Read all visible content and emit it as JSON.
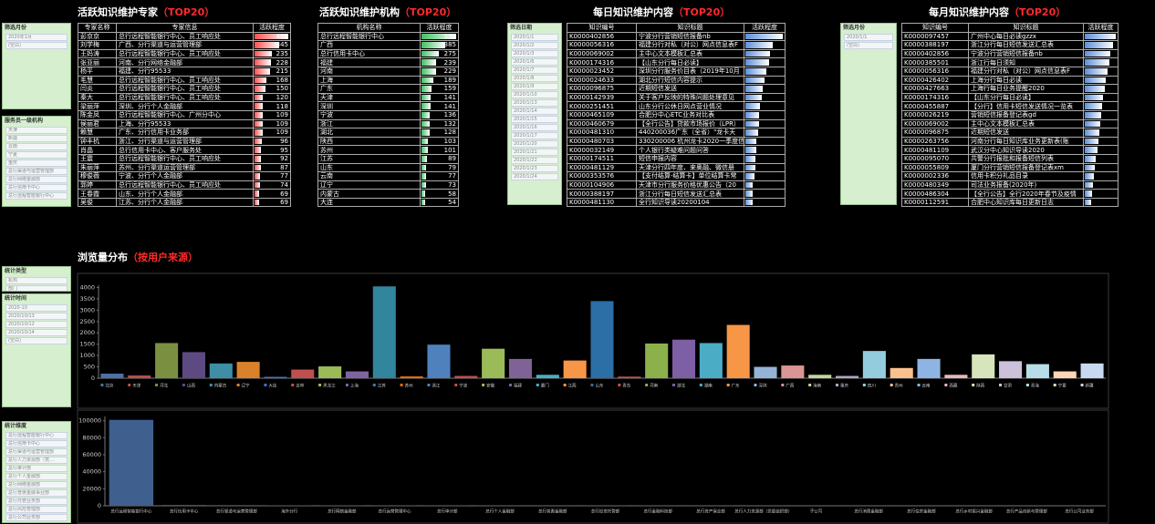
{
  "slicers": [
    {
      "title": "筛选月份",
      "items": [
        "2020年1月",
        "(空白)"
      ]
    },
    {
      "title": "服务员一级机构",
      "items": [
        "天津",
        "新疆",
        "云南",
        "宁夏",
        "重庆",
        "总行渠道与运营管理部",
        "总行网络金融部",
        "总行信用卡中心",
        "总行远程智能银行中心"
      ]
    },
    {
      "title": "筛选日期",
      "items": [
        "2020/1/1",
        "2020/1/2",
        "2020/1/3",
        "2020/1/6",
        "2020/1/7",
        "2020/1/8",
        "2020/1/9",
        "2020/1/10",
        "2020/1/13",
        "2020/1/14",
        "2020/1/15",
        "2020/1/16",
        "2020/1/17",
        "2020/1/20",
        "2020/1/21",
        "2020/1/22",
        "2020/1/23",
        "2020/1/24"
      ]
    },
    {
      "title": "筛选月份",
      "items": [
        "2020/1/1",
        "(空白)"
      ]
    },
    {
      "title": "统计类型",
      "items": [
        "机构",
        "部门"
      ]
    },
    {
      "title": "统计时间",
      "items": [
        "2020-10",
        "2020/10/13",
        "2020/10/12",
        "2020/10/14",
        "(空白)"
      ]
    },
    {
      "title": "统计维度",
      "items": [
        "总行远程智能银行中心",
        "总行信用卡中心",
        "总行渠道与运营管理部",
        "总行人力资源部（党…",
        "总行审计部",
        "总行个人金融部",
        "总行网络金融部",
        "总行普惠金融事业部",
        "总行托管业务部",
        "总行风险管理部",
        "总行公司业务部",
        "总行住房金融与个人…",
        "总行运营管理部"
      ]
    }
  ],
  "tables": [
    {
      "title": "活跃知识维护专家",
      "title_note": "（TOP20）",
      "bar_color": "#ff5050",
      "columns": [
        "专家名称",
        "专家信息",
        "活跃程度"
      ],
      "rows": [
        [
          "彭京京",
          "总行远程智能银行中心、员工响应处",
          469
        ],
        [
          "刘学梅",
          "广西、分行渠道与运营管理部",
          345
        ],
        [
          "王妈涛",
          "总行远程智能银行中心、员工响应处",
          235
        ],
        [
          "张亚丽",
          "河南、分行网络金融部",
          228
        ],
        [
          "杨平",
          "福建、分行95533",
          215
        ],
        [
          "毛慧",
          "总行远程智能银行中心、员工响应处",
          168
        ],
        [
          "闫炎",
          "总行远程智能银行中心、员工响应处",
          150
        ],
        [
          "秦大",
          "总行远程智能银行中心、员工响应处",
          120
        ],
        [
          "梁丽萍",
          "深圳、分行个人金融部",
          118
        ],
        [
          "陈金凤",
          "总行远程智能银行中心、广州分中心",
          109
        ],
        [
          "侯丽君",
          "上海、分行95533",
          109
        ],
        [
          "赖慧",
          "广东、分行信用卡业务部",
          109
        ],
        [
          "钟丰杭",
          "浙江、分行渠道与运营管理部",
          96
        ],
        [
          "肖晶",
          "总行信用卡中心、客户服务处",
          95
        ],
        [
          "王震",
          "总行远程智能银行中心、员工响应处",
          92
        ],
        [
          "朱丽萍",
          "苏州、分行渠道运营管理部",
          87
        ],
        [
          "穆俊薇",
          "宁波、分行个人金融部",
          77
        ],
        [
          "郭婷",
          "总行远程智能银行中心、员工响应处",
          74
        ],
        [
          "王春霞",
          "山东、分行个人金融部",
          69
        ],
        [
          "吴俊",
          "江苏、分行个人金融部",
          69
        ]
      ]
    },
    {
      "title": "活跃知识维护机构",
      "title_note": "（TOP20）",
      "bar_color": "#3fbf5f",
      "columns": [
        "机构名称",
        "活跃程度"
      ],
      "rows": [
        [
          "总行远程智能银行中心",
          559
        ],
        [
          "广西",
          385
        ],
        [
          "总行信用卡中心",
          275
        ],
        [
          "福建",
          239
        ],
        [
          "河南",
          229
        ],
        [
          "上海",
          189
        ],
        [
          "广东",
          159
        ],
        [
          "天津",
          141
        ],
        [
          "深圳",
          141
        ],
        [
          "宁波",
          136
        ],
        [
          "浙江",
          132
        ],
        [
          "湖北",
          128
        ],
        [
          "陕西",
          103
        ],
        [
          "苏州",
          101
        ],
        [
          "江苏",
          89
        ],
        [
          "山东",
          79
        ],
        [
          "云南",
          77
        ],
        [
          "辽宁",
          73
        ],
        [
          "内蒙古",
          58
        ],
        [
          "大连",
          54
        ]
      ]
    },
    {
      "title": "每日知识维护内容",
      "title_note": "（TOP20）",
      "bar_color": "#5b8fd9",
      "columns": [
        "知识编号",
        "知识标题",
        "活跃程度"
      ],
      "rows": [
        [
          "K0000402856",
          "宁波分行营销短信报备nb"
        ],
        [
          "K0000056316",
          "福建分行对私（对公）网点信息表F"
        ],
        [
          "K0000069002",
          "主中心文本模板汇总表"
        ],
        [
          "K0000174316",
          "【山东分行每日必读】"
        ],
        [
          "K0000023452",
          "深圳分行服务价目表（2019年10月"
        ],
        [
          "K0000024633",
          "湖北分行短信内容提示"
        ],
        [
          "K0000096875",
          "近期短信发送"
        ],
        [
          "K0000142939",
          "关于客户反映的特殊问题处理意见"
        ],
        [
          "K0000251451",
          "山东分行公休日网点营业情况"
        ],
        [
          "K0000465109",
          "合肥分中心ETC业务对比表"
        ],
        [
          "K0000460679",
          "【全行公告】贷款市场报价（LPR）"
        ],
        [
          "K0000481310",
          "440200036广东（全省）\"龙卡天"
        ],
        [
          "K0000480703",
          "330200006 杭州龙卡2020一季度信"
        ],
        [
          "K0000032149",
          "个人银行类疑难问题问答"
        ],
        [
          "K0000174511",
          "短信申报内容"
        ],
        [
          "K0000481129",
          "天津分行四年度、来奥融、微信册"
        ],
        [
          "K0000353576",
          "【支付结算-结算卡】单位结算卡常"
        ],
        [
          "K0000104906",
          "天津市分行服务价格优惠公告（20"
        ],
        [
          "K0000388197",
          "浙江分行每日短信发送汇总表"
        ],
        [
          "K0000481130",
          "全行知识导读20200104"
        ]
      ],
      "bar_values": [
        30,
        22,
        20,
        19,
        17,
        15,
        14,
        13,
        12,
        11,
        11,
        10,
        9,
        9,
        8,
        8,
        7,
        6,
        6,
        6
      ]
    },
    {
      "title": "每月知识维护内容",
      "title_note": "（TOP20）",
      "bar_color": "#5b8fd9",
      "columns": [
        "知识编号",
        "知识标题",
        "活跃程度"
      ],
      "rows": [
        [
          "K0000097457",
          "广州中心每日必读gzzx"
        ],
        [
          "K0000388197",
          "浙江分行每日短信发送汇总表"
        ],
        [
          "K0000402856",
          "宁波分行营销短信报备nb"
        ],
        [
          "K0000385501",
          "浙江行每日须知"
        ],
        [
          "K0000056316",
          "福建分行对私（对公）网点信息表F"
        ],
        [
          "K0000426402",
          "上海分行每日必读"
        ],
        [
          "K0000427663",
          "上海行每日业务提醒2020"
        ],
        [
          "K0000174316",
          "【山东分行每日必读】"
        ],
        [
          "K0000455887",
          "【分行】信用卡短信发送情况一览表"
        ],
        [
          "K0000026219",
          "营销短信报备登记表gd"
        ],
        [
          "K0000069002",
          "主中心文本模板汇总表"
        ],
        [
          "K0000096875",
          "近期短信发送"
        ],
        [
          "K0000263756",
          "河南分行每日知识库业务更新表(账"
        ],
        [
          "K0000481109",
          "武汉分中心知识导读2020"
        ],
        [
          "K0000095070",
          "共警分行报批和报备短信列表"
        ],
        [
          "K0000055809",
          "厦门分行营销短信报备登记表xm"
        ],
        [
          "K0000002336",
          "信用卡积分礼品目录"
        ],
        [
          "K0000480349",
          "司法业务报备(2020年)"
        ],
        [
          "K0000486304",
          "【全行公告】全行2020年春节及疫情"
        ],
        [
          "K0000112591",
          "合肥中心知识库每日更新日志"
        ]
      ],
      "bar_values": [
        30,
        27,
        25,
        24,
        22,
        20,
        19,
        18,
        17,
        16,
        15,
        14,
        13,
        12,
        11,
        10,
        9,
        8,
        7,
        6
      ]
    }
  ],
  "chart_data": [
    {
      "type": "bar",
      "title": "浏览量分布",
      "title_note": "（按用户来源）",
      "legend": "bottom",
      "categories": [
        "北京",
        "天津",
        "河北",
        "山西",
        "内蒙古",
        "辽宁",
        "大连",
        "吉林",
        "黑龙江",
        "上海",
        "江苏",
        "苏州",
        "浙江",
        "宁波",
        "安徽",
        "福建",
        "厦门",
        "江西",
        "山东",
        "青岛",
        "河南",
        "湖北",
        "湖南",
        "广东",
        "深圳",
        "广西",
        "海南",
        "重庆",
        "四川",
        "贵州",
        "云南",
        "西藏",
        "陕西",
        "甘肃",
        "青海",
        "宁夏",
        "新疆"
      ],
      "values": [
        200,
        120,
        1550,
        1150,
        650,
        720,
        60,
        380,
        520,
        300,
        4050,
        80,
        1480,
        100,
        1300,
        850,
        150,
        780,
        3400,
        70,
        1530,
        1700,
        1550,
        2350,
        500,
        560,
        150,
        100,
        1200,
        450,
        850,
        150,
        1050,
        750,
        620,
        300,
        650
      ],
      "colors": [
        "#4f6fa8",
        "#b5504a",
        "#7a9040",
        "#5e4a82",
        "#3e8fa6",
        "#d9822b",
        "#4472c4",
        "#c0504d",
        "#9bbb59",
        "#8064a2",
        "#31859c",
        "#e46c0a",
        "#4f81bd",
        "#c0504d",
        "#9bbb59",
        "#7f6396",
        "#4bacc6",
        "#f79646",
        "#2c6fa6",
        "#c0504d",
        "#8cb04a",
        "#7d5fa5",
        "#4bacc6",
        "#f79646",
        "#95b3d7",
        "#d99694",
        "#c3d69b",
        "#b3a2c7",
        "#93cddd",
        "#fac08f",
        "#8eb4e3",
        "#e6b9b8",
        "#d7e4bc",
        "#ccc0da",
        "#b7dee8",
        "#fbd5b5",
        "#c6d9f1"
      ],
      "ylim": [
        0,
        4100
      ],
      "yticks": [
        0,
        500,
        1000,
        1500,
        2000,
        2500,
        3000,
        3500,
        4000
      ]
    },
    {
      "type": "bar",
      "color": "#3f5f8f",
      "categories": [
        "总行远程智能银行中心",
        "总行信用卡中心",
        "总行渠道与运营管理部",
        "海外分行",
        "总行网络金融部",
        "总行运营管理中心",
        "总行审计部",
        "总行个人金融部",
        "总行普惠金融部",
        "总行投资托管部",
        "总行金融科技部",
        "总行资产保全部",
        "总行人力资源部（党委组织部）",
        "子公司",
        "总行消费金融部",
        "总行住房金融部",
        "总行乡村振兴金融部",
        "总行产品创新与管理部",
        "总行公司业务部"
      ],
      "values": [
        101000,
        900,
        700,
        500,
        400,
        350,
        300,
        250,
        220,
        200,
        180,
        150,
        120,
        100,
        90,
        80,
        70,
        60,
        50
      ],
      "ylim": [
        0,
        105000
      ],
      "yticks": [
        0,
        20000,
        40000,
        60000,
        80000,
        100000
      ]
    }
  ]
}
